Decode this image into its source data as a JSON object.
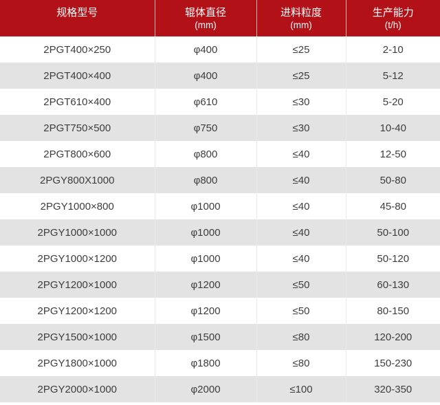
{
  "colors": {
    "header-bg": "#b21117",
    "header-text": "#ffffff",
    "header-divider": "rgba(255,255,255,0.75)",
    "row-odd-bg": "#ffffff",
    "row-even-bg": "#e3e3e3",
    "body-text": "#3d3d3d",
    "body-divider": "#e9e9e9"
  },
  "chart_data": {
    "type": "table",
    "title": "",
    "legend_position": "none",
    "grid": "row-striping",
    "columns": [
      {
        "label": "规格型号",
        "line1": "规格型号",
        "line2": ""
      },
      {
        "label": "辊体直径 (mm)",
        "line1": "辊体直径",
        "line2": "(mm)"
      },
      {
        "label": "进料粒度 (mm)",
        "line1": "进料粒度",
        "line2": "(mm)"
      },
      {
        "label": "生产能力 (t/h)",
        "line1": "生产能力",
        "line2": "(t/h)"
      }
    ],
    "rows": [
      [
        "2PGT400×250",
        "φ400",
        "≤25",
        "2-10"
      ],
      [
        "2PGT400×400",
        "φ400",
        "≤25",
        "5-12"
      ],
      [
        "2PGT610×400",
        "φ610",
        "≤30",
        "5-20"
      ],
      [
        "2PGT750×500",
        "φ750",
        "≤30",
        "10-40"
      ],
      [
        "2PGT800×600",
        "φ800",
        "≤40",
        "12-50"
      ],
      [
        "2PGY800X1000",
        "φ800",
        "≤40",
        "50-80"
      ],
      [
        "2PGY1000×800",
        "φ1000",
        "≤40",
        "45-80"
      ],
      [
        "2PGY1000×1000",
        "φ1000",
        "≤40",
        "50-100"
      ],
      [
        "2PGY1000×1200",
        "φ1000",
        "≤40",
        "50-120"
      ],
      [
        "2PGY1200×1000",
        "φ1200",
        "≤50",
        "60-130"
      ],
      [
        "2PGY1200×1200",
        "φ1200",
        "≤50",
        "80-150"
      ],
      [
        "2PGY1500×1000",
        "φ1500",
        "≤80",
        "120-200"
      ],
      [
        "2PGY1800×1000",
        "φ1800",
        "≤80",
        "150-230"
      ],
      [
        "2PGY2000×1000",
        "φ2000",
        "≤100",
        "320-350"
      ]
    ]
  }
}
